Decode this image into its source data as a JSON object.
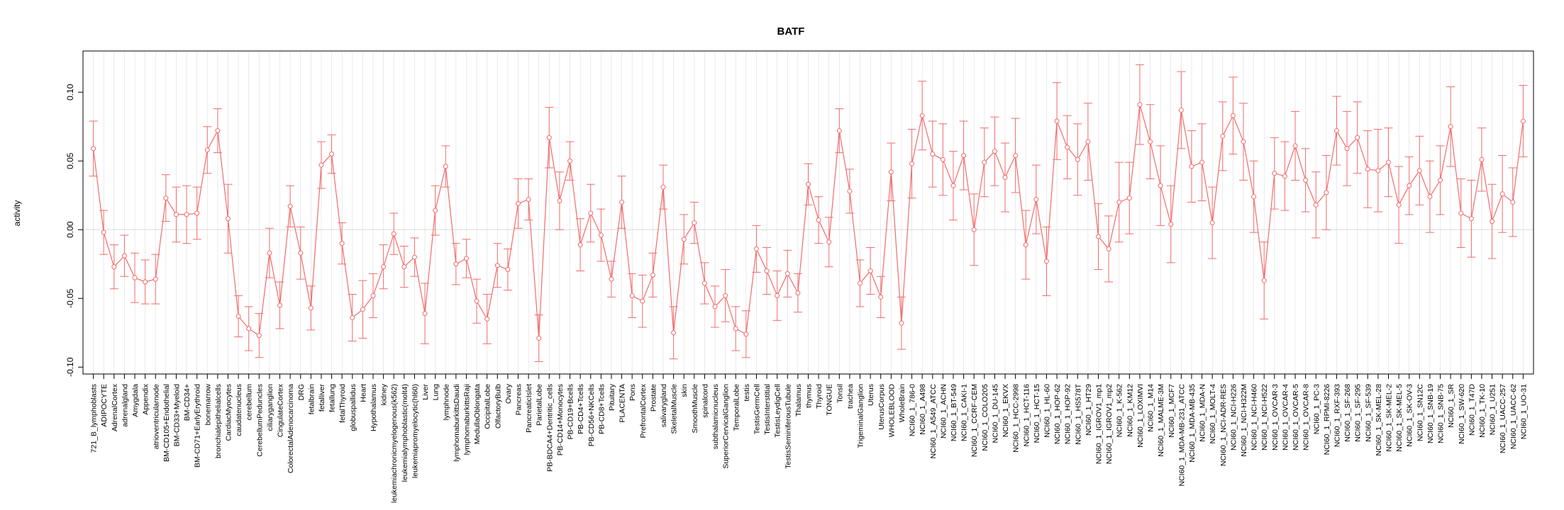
{
  "chart_data": {
    "type": "line",
    "title": "BATF",
    "xlabel": "",
    "ylabel": "activity",
    "ylim": [
      -0.105,
      0.13
    ],
    "yticks": [
      "-0.10",
      "-0.05",
      "0.00",
      "0.05",
      "0.10"
    ],
    "grid": true,
    "error_bars": true,
    "series_color": "#f26b6b",
    "grid_color": "#dddddd",
    "categories": [
      "721_B_lymphoblasts",
      "ADIPOCYTE",
      "AdrenalCortex",
      "adrenalgland",
      "Amygdala",
      "Appendix",
      "atrioventricularnode",
      "BM-CD105+Endothelial",
      "BM-CD33+Myeloid",
      "BM-CD34+",
      "BM-CD71+EarlyErythroid",
      "bonemarrow",
      "bronchialepithelialcells",
      "CardiacMyocytes",
      "caudatenucleus",
      "cerebellum",
      "CerebellumPeduncles",
      "ciliaryganglion",
      "CingulateCortex",
      "ColorectalAdenocarcinoma",
      "DRG",
      "fetalbrain",
      "fetalliver",
      "fetallung",
      "fetalThyroid",
      "globuspallidus",
      "Heart",
      "Hypothalamus",
      "kidney",
      "leukemiachronicmyelogenous(k562)",
      "leukemialymphoblastic(molt4)",
      "leukemiapromyelocytic(hl60)",
      "Liver",
      "Lung",
      "lymphnode",
      "lymphomaburkittsDaudi",
      "lymphomaburkittsRaji",
      "MedullaOblongata",
      "OccipitalLobe",
      "OlfactoryBulb",
      "Ovary",
      "Pancreas",
      "PancreaticIslet",
      "ParietalLobe",
      "PB-BDCA4+Dentritic_cells",
      "PB-CD14+Monocytes",
      "PB-CD19+Bcells",
      "PB-CD4+Tcells",
      "PB-CD56+NKCells",
      "PB-CD8+Tcells",
      "Pituitary",
      "PLACENTA",
      "Pons",
      "PrefrontalCortex",
      "Prostate",
      "salivarygland",
      "SkeletalMuscle",
      "skin",
      "SmoothMuscle",
      "spinalcord",
      "subthalamicnucleus",
      "SuperiorCervicalGanglion",
      "TemporalLobe",
      "testis",
      "TestisGermCell",
      "TestisInterstitial",
      "TestisLeydigCell",
      "TestisSeminiferousTubule",
      "Thalamus",
      "thymus",
      "Thyroid",
      "TONGUE",
      "Tonsil",
      "trachea",
      "TrigeminalGanglion",
      "Uterus",
      "UterusCorpus",
      "WHOLEBLOOD",
      "WholeBrain",
      "NCI60_1_786-0",
      "NCI60_1_A498",
      "NCI60_1_A549_ATCC",
      "NCI60_1_ACHN",
      "NCI60_1_BT-549",
      "NCI60_1_CAKI-1",
      "NCI60_1_CCRF-CEM",
      "NCI60_1_COLO205",
      "NCI60_1_DU-145",
      "NCI60_1_EKVX",
      "NCI60_1_HCC-2998",
      "NCI60_1_HCT-116",
      "NCI60_1_HCT-15",
      "NCI60_1_HL-60",
      "NCI60_1_HOP-62",
      "NCI60_1_HOP-92",
      "NCI60_1_HS578T",
      "NCI60_1_HT29",
      "NCI60_1_IGROV1_mp1",
      "NCI60_1_IGROV1_mp2",
      "NCI60_1_K-562",
      "NCI60_1_KM12",
      "NCI60_1_LOXIMVI",
      "NCI60_1_M14",
      "NCI60_1_MALME-3M",
      "NCI60_1_MCF7",
      "NCI60_1_MDA-MB-231_ATCC",
      "NCI60_1_MDA-MB-435",
      "NCI60_1_MDA-N",
      "NCI60_1_MOLT-4",
      "NCI60_1_NCI-ADR-RES",
      "NCI60_1_NCI-H226",
      "NCI60_1_NCI-H322M",
      "NCI60_1_NCI-H460",
      "NCI60_1_NCI-H522",
      "NCI60_1_OVCAR-3",
      "NCI60_1_OVCAR-4",
      "NCI60_1_OVCAR-5",
      "NCI60_1_OVCAR-8",
      "NCI60_1_PC-3",
      "NCI60_1_RPMI-8226",
      "NCI60_1_RXF-393",
      "NCI60_1_SF-268",
      "NCI60_1_SF-295",
      "NCI60_1_SF-539",
      "NCI60_1_SK-MEL-28",
      "NCI60_1_SK-MEL-2",
      "NCI60_1_SK-MEL-5",
      "NCI60_1_SK-OV-3",
      "NCI60_1_SN12C",
      "NCI60_1_SNB-19",
      "NCI60_1_SNB-75",
      "NCI60_1_SR",
      "NCI60_1_SW-620",
      "NCI60_1_T47D",
      "NCI60_1_TK-10",
      "NCI60_1_U251",
      "NCI60_1_UACC-257",
      "NCI60_1_UACC-62",
      "NCI60_1_UO-31"
    ],
    "values": [
      0.059,
      -0.002,
      -0.027,
      -0.019,
      -0.035,
      -0.038,
      -0.036,
      0.023,
      0.011,
      0.011,
      0.012,
      0.058,
      0.072,
      0.008,
      -0.063,
      -0.072,
      -0.077,
      -0.017,
      -0.055,
      0.017,
      -0.017,
      -0.057,
      0.047,
      0.055,
      -0.01,
      -0.064,
      -0.058,
      -0.048,
      -0.027,
      -0.003,
      -0.027,
      -0.02,
      -0.061,
      0.014,
      0.046,
      -0.025,
      -0.021,
      -0.052,
      -0.065,
      -0.026,
      -0.029,
      0.019,
      0.022,
      -0.079,
      0.067,
      0.021,
      0.05,
      -0.011,
      0.012,
      -0.004,
      -0.036,
      0.02,
      -0.048,
      -0.052,
      -0.033,
      0.031,
      -0.075,
      -0.007,
      0.005,
      -0.039,
      -0.056,
      -0.048,
      -0.072,
      -0.076,
      -0.014,
      -0.03,
      -0.048,
      -0.032,
      -0.046,
      0.033,
      0.007,
      -0.009,
      0.072,
      0.028,
      -0.039,
      -0.03,
      -0.049,
      0.042,
      -0.068,
      0.048,
      0.083,
      0.055,
      0.051,
      0.032,
      0.054,
      0.0,
      0.049,
      0.057,
      0.038,
      0.054,
      -0.011,
      0.022,
      -0.023,
      0.079,
      0.06,
      0.051,
      0.064,
      -0.005,
      -0.014,
      0.02,
      0.023,
      0.091,
      0.064,
      0.032,
      0.004,
      0.087,
      0.046,
      0.049,
      0.005,
      0.068,
      0.083,
      0.064,
      0.024,
      -0.037,
      0.041,
      0.039,
      0.061,
      0.036,
      0.018,
      0.027,
      0.072,
      0.059,
      0.067,
      0.044,
      0.043,
      0.049,
      0.018,
      0.032,
      0.043,
      0.024,
      0.036,
      0.075,
      0.012,
      0.008,
      0.051,
      0.006,
      0.026,
      0.02,
      0.079
    ],
    "errors": [
      0.02,
      0.016,
      0.016,
      0.015,
      0.018,
      0.016,
      0.018,
      0.017,
      0.02,
      0.021,
      0.019,
      0.017,
      0.016,
      0.025,
      0.015,
      0.016,
      0.016,
      0.018,
      0.017,
      0.015,
      0.019,
      0.016,
      0.017,
      0.014,
      0.015,
      0.017,
      0.021,
      0.016,
      0.016,
      0.015,
      0.015,
      0.014,
      0.022,
      0.018,
      0.015,
      0.015,
      0.014,
      0.016,
      0.018,
      0.016,
      0.015,
      0.018,
      0.015,
      0.017,
      0.022,
      0.021,
      0.014,
      0.019,
      0.021,
      0.019,
      0.013,
      0.019,
      0.016,
      0.019,
      0.016,
      0.016,
      0.019,
      0.018,
      0.015,
      0.015,
      0.015,
      0.019,
      0.016,
      0.017,
      0.017,
      0.017,
      0.018,
      0.017,
      0.014,
      0.015,
      0.017,
      0.018,
      0.016,
      0.016,
      0.017,
      0.017,
      0.015,
      0.021,
      0.019,
      0.025,
      0.025,
      0.024,
      0.026,
      0.025,
      0.025,
      0.026,
      0.025,
      0.025,
      0.025,
      0.027,
      0.025,
      0.025,
      0.025,
      0.028,
      0.023,
      0.026,
      0.028,
      0.024,
      0.024,
      0.029,
      0.026,
      0.029,
      0.027,
      0.029,
      0.028,
      0.028,
      0.026,
      0.028,
      0.026,
      0.025,
      0.028,
      0.028,
      0.026,
      0.028,
      0.026,
      0.025,
      0.025,
      0.023,
      0.024,
      0.027,
      0.025,
      0.027,
      0.026,
      0.028,
      0.03,
      0.025,
      0.028,
      0.021,
      0.025,
      0.026,
      0.025,
      0.029,
      0.025,
      0.028,
      0.023,
      0.027,
      0.028,
      0.025,
      0.026
    ]
  }
}
